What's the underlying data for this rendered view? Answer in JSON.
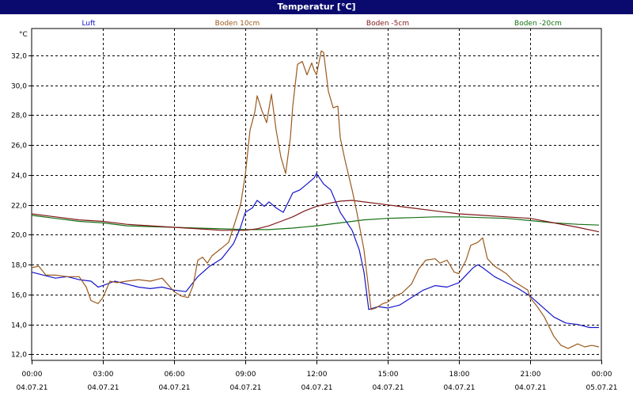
{
  "window": {
    "title": "Temperatur [°C]"
  },
  "chart_data": {
    "type": "line",
    "title": "Temperatur [°C]",
    "ylabel": "°C",
    "xlabel": "",
    "ylim": [
      11.6,
      33.8
    ],
    "xlim": [
      0,
      24
    ],
    "grid": true,
    "legend": "top",
    "y_ticks": [
      "12,0",
      "14,0",
      "16,0",
      "18,0",
      "20,0",
      "22,0",
      "24,0",
      "26,0",
      "28,0",
      "30,0",
      "32,0"
    ],
    "x_ticks": [
      {
        "time": "00:00",
        "date": "04.07.21"
      },
      {
        "time": "03:00",
        "date": "04.07.21"
      },
      {
        "time": "06:00",
        "date": "04.07.21"
      },
      {
        "time": "09:00",
        "date": "04.07.21"
      },
      {
        "time": "12:00",
        "date": "04.07.21"
      },
      {
        "time": "15:00",
        "date": "04.07.21"
      },
      {
        "time": "18:00",
        "date": "04.07.21"
      },
      {
        "time": "21:00",
        "date": "04.07.21"
      },
      {
        "time": "00:00",
        "date": "05.07.21"
      }
    ],
    "series": [
      {
        "name": "Luft",
        "color": "#1515c8",
        "points": [
          [
            0,
            17.5
          ],
          [
            0.5,
            17.3
          ],
          [
            1,
            17.1
          ],
          [
            1.5,
            17.2
          ],
          [
            2,
            17.0
          ],
          [
            2.5,
            16.9
          ],
          [
            2.8,
            16.5
          ],
          [
            3,
            16.6
          ],
          [
            3.5,
            16.9
          ],
          [
            4,
            16.7
          ],
          [
            4.5,
            16.5
          ],
          [
            5,
            16.4
          ],
          [
            5.5,
            16.5
          ],
          [
            6,
            16.3
          ],
          [
            6.5,
            16.2
          ],
          [
            7,
            17.2
          ],
          [
            7.5,
            17.9
          ],
          [
            8,
            18.4
          ],
          [
            8.5,
            19.4
          ],
          [
            8.8,
            20.5
          ],
          [
            9,
            21.5
          ],
          [
            9.3,
            21.8
          ],
          [
            9.5,
            22.3
          ],
          [
            9.8,
            21.9
          ],
          [
            10,
            22.2
          ],
          [
            10.3,
            21.8
          ],
          [
            10.6,
            21.5
          ],
          [
            11,
            22.8
          ],
          [
            11.3,
            23.0
          ],
          [
            11.6,
            23.4
          ],
          [
            11.9,
            23.8
          ],
          [
            12,
            24.1
          ],
          [
            12.3,
            23.4
          ],
          [
            12.6,
            23.0
          ],
          [
            13,
            21.5
          ],
          [
            13.5,
            20.3
          ],
          [
            13.8,
            19.0
          ],
          [
            14,
            17.5
          ],
          [
            14.2,
            15.0
          ],
          [
            14.6,
            15.2
          ],
          [
            15,
            15.1
          ],
          [
            15.5,
            15.3
          ],
          [
            16,
            15.8
          ],
          [
            16.5,
            16.3
          ],
          [
            17,
            16.6
          ],
          [
            17.5,
            16.5
          ],
          [
            18,
            16.8
          ],
          [
            18.3,
            17.3
          ],
          [
            18.6,
            17.8
          ],
          [
            18.8,
            18.0
          ],
          [
            19,
            17.8
          ],
          [
            19.5,
            17.2
          ],
          [
            20,
            16.8
          ],
          [
            20.5,
            16.4
          ],
          [
            21,
            15.9
          ],
          [
            21.5,
            15.2
          ],
          [
            22,
            14.5
          ],
          [
            22.5,
            14.1
          ],
          [
            23,
            14.0
          ],
          [
            23.5,
            13.8
          ],
          [
            23.9,
            13.8
          ]
        ]
      },
      {
        "name": "Boden 10cm",
        "color": "#9a5a1e",
        "points": [
          [
            0,
            17.8
          ],
          [
            0.3,
            17.9
          ],
          [
            0.6,
            17.3
          ],
          [
            1,
            17.3
          ],
          [
            1.5,
            17.2
          ],
          [
            2,
            17.2
          ],
          [
            2.3,
            16.5
          ],
          [
            2.5,
            15.6
          ],
          [
            2.8,
            15.4
          ],
          [
            3,
            15.8
          ],
          [
            3.3,
            16.9
          ],
          [
            3.6,
            16.8
          ],
          [
            4,
            16.9
          ],
          [
            4.5,
            17.0
          ],
          [
            5,
            16.9
          ],
          [
            5.5,
            17.1
          ],
          [
            6,
            16.2
          ],
          [
            6.3,
            15.9
          ],
          [
            6.6,
            15.8
          ],
          [
            6.8,
            16.6
          ],
          [
            7,
            18.3
          ],
          [
            7.2,
            18.5
          ],
          [
            7.4,
            18.1
          ],
          [
            7.6,
            18.6
          ],
          [
            8,
            19.1
          ],
          [
            8.3,
            19.5
          ],
          [
            8.6,
            21.0
          ],
          [
            8.8,
            22.0
          ],
          [
            9,
            24.0
          ],
          [
            9.2,
            27.0
          ],
          [
            9.4,
            28.2
          ],
          [
            9.5,
            29.3
          ],
          [
            9.7,
            28.3
          ],
          [
            9.9,
            27.5
          ],
          [
            10.1,
            29.4
          ],
          [
            10.3,
            27.0
          ],
          [
            10.5,
            25.2
          ],
          [
            10.7,
            24.1
          ],
          [
            10.9,
            26.5
          ],
          [
            11,
            28.6
          ],
          [
            11.2,
            31.4
          ],
          [
            11.4,
            31.6
          ],
          [
            11.6,
            30.7
          ],
          [
            11.8,
            31.5
          ],
          [
            11.9,
            31.0
          ],
          [
            12,
            30.7
          ],
          [
            12.2,
            32.3
          ],
          [
            12.3,
            32.2
          ],
          [
            12.5,
            29.6
          ],
          [
            12.7,
            28.5
          ],
          [
            12.9,
            28.6
          ],
          [
            13,
            26.5
          ],
          [
            13.2,
            25.0
          ],
          [
            13.5,
            23.0
          ],
          [
            13.7,
            21.5
          ],
          [
            14,
            19.0
          ],
          [
            14.3,
            15.0
          ],
          [
            14.5,
            15.1
          ],
          [
            14.8,
            15.4
          ],
          [
            15,
            15.5
          ],
          [
            15.3,
            15.9
          ],
          [
            15.6,
            16.1
          ],
          [
            16,
            16.7
          ],
          [
            16.3,
            17.7
          ],
          [
            16.6,
            18.3
          ],
          [
            17,
            18.4
          ],
          [
            17.2,
            18.1
          ],
          [
            17.5,
            18.3
          ],
          [
            17.8,
            17.5
          ],
          [
            18,
            17.4
          ],
          [
            18.3,
            18.3
          ],
          [
            18.5,
            19.3
          ],
          [
            18.8,
            19.5
          ],
          [
            19,
            19.8
          ],
          [
            19.2,
            18.4
          ],
          [
            19.5,
            17.9
          ],
          [
            19.8,
            17.6
          ],
          [
            20,
            17.4
          ],
          [
            20.3,
            16.9
          ],
          [
            20.6,
            16.6
          ],
          [
            20.9,
            16.3
          ],
          [
            21,
            15.8
          ],
          [
            21.3,
            15.2
          ],
          [
            21.6,
            14.5
          ],
          [
            22,
            13.2
          ],
          [
            22.3,
            12.6
          ],
          [
            22.6,
            12.4
          ],
          [
            23,
            12.7
          ],
          [
            23.3,
            12.5
          ],
          [
            23.6,
            12.6
          ],
          [
            23.9,
            12.5
          ]
        ]
      },
      {
        "name": "Boden -5cm",
        "color": "#801818",
        "points": [
          [
            0,
            21.4
          ],
          [
            1,
            21.2
          ],
          [
            2,
            21.0
          ],
          [
            3,
            20.9
          ],
          [
            4,
            20.7
          ],
          [
            5,
            20.6
          ],
          [
            6,
            20.5
          ],
          [
            7,
            20.4
          ],
          [
            8,
            20.3
          ],
          [
            9,
            20.3
          ],
          [
            9.5,
            20.4
          ],
          [
            10,
            20.6
          ],
          [
            10.5,
            20.9
          ],
          [
            11,
            21.2
          ],
          [
            11.5,
            21.6
          ],
          [
            12,
            21.9
          ],
          [
            12.5,
            22.1
          ],
          [
            13,
            22.25
          ],
          [
            13.5,
            22.3
          ],
          [
            14,
            22.2
          ],
          [
            15,
            22.0
          ],
          [
            16,
            21.8
          ],
          [
            17,
            21.6
          ],
          [
            18,
            21.4
          ],
          [
            19,
            21.3
          ],
          [
            20,
            21.2
          ],
          [
            21,
            21.1
          ],
          [
            22,
            20.8
          ],
          [
            23,
            20.5
          ],
          [
            23.9,
            20.2
          ]
        ]
      },
      {
        "name": "Boden -20cm",
        "color": "#157015",
        "points": [
          [
            0,
            21.3
          ],
          [
            1,
            21.1
          ],
          [
            2,
            20.9
          ],
          [
            3,
            20.8
          ],
          [
            4,
            20.6
          ],
          [
            5,
            20.55
          ],
          [
            6,
            20.5
          ],
          [
            7,
            20.45
          ],
          [
            8,
            20.4
          ],
          [
            9,
            20.35
          ],
          [
            10,
            20.35
          ],
          [
            11,
            20.45
          ],
          [
            12,
            20.6
          ],
          [
            13,
            20.8
          ],
          [
            14,
            21.0
          ],
          [
            15,
            21.1
          ],
          [
            16,
            21.15
          ],
          [
            17,
            21.2
          ],
          [
            18,
            21.2
          ],
          [
            19,
            21.15
          ],
          [
            20,
            21.1
          ],
          [
            21,
            20.95
          ],
          [
            22,
            20.8
          ],
          [
            23,
            20.7
          ],
          [
            23.9,
            20.65
          ]
        ]
      }
    ]
  }
}
